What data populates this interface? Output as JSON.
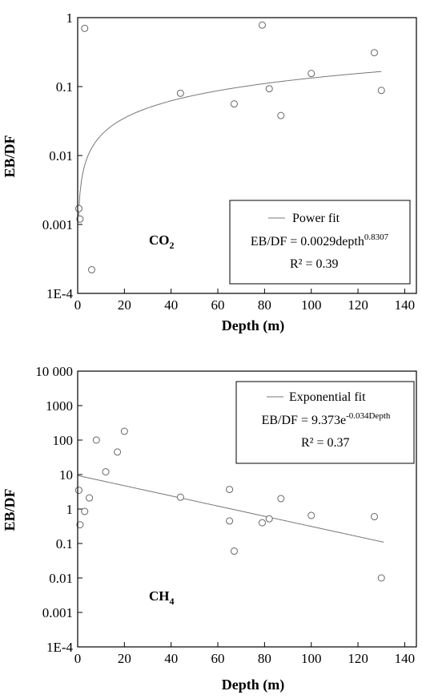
{
  "chart_data": [
    {
      "type": "scatter",
      "gas_label": {
        "main": "CO",
        "sub": "2"
      },
      "xlabel": "Depth (m)",
      "ylabel": "EB/DF",
      "xlim": [
        0,
        145
      ],
      "ylim": [
        0.0001,
        1
      ],
      "yscale": "log",
      "xticks": [
        0,
        20,
        40,
        60,
        80,
        100,
        120,
        140
      ],
      "xtick_labels": [
        "0",
        "20",
        "40",
        "60",
        "80",
        "100",
        "120",
        "140"
      ],
      "yticks": [
        0.0001,
        0.001,
        0.01,
        0.1,
        1
      ],
      "ytick_labels": [
        "1E-4",
        "0.001",
        "0.01",
        "0.1",
        "1"
      ],
      "points": [
        {
          "x": 0.5,
          "y": 0.0017
        },
        {
          "x": 1,
          "y": 0.0012
        },
        {
          "x": 3,
          "y": 0.7
        },
        {
          "x": 6,
          "y": 0.00022
        },
        {
          "x": 44,
          "y": 0.08
        },
        {
          "x": 67,
          "y": 0.056
        },
        {
          "x": 79,
          "y": 0.78
        },
        {
          "x": 82,
          "y": 0.093
        },
        {
          "x": 87,
          "y": 0.038
        },
        {
          "x": 100,
          "y": 0.155
        },
        {
          "x": 127,
          "y": 0.31
        },
        {
          "x": 130,
          "y": 0.088
        }
      ],
      "fit": {
        "kind": "power",
        "a": 0.0029,
        "b": 0.8307,
        "x_from": 0.3,
        "x_to": 130
      },
      "legend": {
        "line_label": "Power fit",
        "equation_prefix": "EB/DF = 0.0029depth",
        "equation_exponent": "0.8307",
        "r2": "R² = 0.39"
      }
    },
    {
      "type": "scatter",
      "gas_label": {
        "main": "CH",
        "sub": "4"
      },
      "xlabel": "Depth (m)",
      "ylabel": "EB/DF",
      "xlim": [
        0,
        145
      ],
      "ylim": [
        0.0001,
        10000
      ],
      "yscale": "log",
      "xticks": [
        0,
        20,
        40,
        60,
        80,
        100,
        120,
        140
      ],
      "xtick_labels": [
        "0",
        "20",
        "40",
        "60",
        "80",
        "100",
        "120",
        "140"
      ],
      "yticks": [
        0.0001,
        0.001,
        0.01,
        0.1,
        1,
        10,
        100,
        1000,
        10000
      ],
      "ytick_labels": [
        "1E-4",
        "0.001",
        "0.01",
        "0.1",
        "1",
        "10",
        "100",
        "1000",
        "10 000"
      ],
      "points": [
        {
          "x": 0.5,
          "y": 3.5
        },
        {
          "x": 1,
          "y": 0.35
        },
        {
          "x": 3,
          "y": 0.85
        },
        {
          "x": 5,
          "y": 2.1
        },
        {
          "x": 8,
          "y": 100
        },
        {
          "x": 12,
          "y": 12
        },
        {
          "x": 17,
          "y": 45
        },
        {
          "x": 20,
          "y": 180
        },
        {
          "x": 44,
          "y": 2.2
        },
        {
          "x": 65,
          "y": 3.7
        },
        {
          "x": 65,
          "y": 0.45
        },
        {
          "x": 67,
          "y": 0.06
        },
        {
          "x": 79,
          "y": 0.4
        },
        {
          "x": 82,
          "y": 0.52
        },
        {
          "x": 87,
          "y": 2.0
        },
        {
          "x": 100,
          "y": 0.65
        },
        {
          "x": 127,
          "y": 0.6
        },
        {
          "x": 130,
          "y": 0.01
        }
      ],
      "fit": {
        "kind": "exponential",
        "a": 9.373,
        "b": -0.034,
        "x_from": 0,
        "x_to": 131
      },
      "legend": {
        "line_label": "Exponential fit",
        "equation_prefix": "EB/DF = 9.373e",
        "equation_exponent": "-0.034Depth",
        "r2": "R² = 0.37"
      }
    }
  ]
}
